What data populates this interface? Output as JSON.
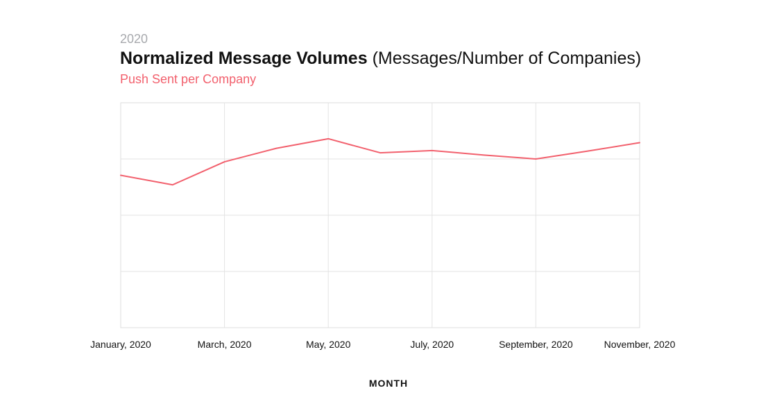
{
  "header": {
    "year": "2020",
    "title_main": "Normalized Message Volumes",
    "title_sub": "(Messages/Number of Companies)",
    "series_label": "Push Sent per Company"
  },
  "chart_data": {
    "type": "line",
    "title": "Normalized Message Volumes (Messages/Number of Companies)",
    "subtitle": "Push Sent per Company",
    "xlabel": "MONTH",
    "ylabel": "",
    "x": [
      "January, 2020",
      "February, 2020",
      "March, 2020",
      "April, 2020",
      "May, 2020",
      "June, 2020",
      "July, 2020",
      "August, 2020",
      "September, 2020",
      "October, 2020",
      "November, 2020"
    ],
    "x_tick_labels": [
      "January, 2020",
      "March, 2020",
      "May, 2020",
      "July, 2020",
      "September, 2020",
      "November, 2020"
    ],
    "series": [
      {
        "name": "Push Sent per Company",
        "color": "#f2606d",
        "values": [
          2.71,
          2.54,
          2.95,
          3.19,
          3.36,
          3.11,
          3.15,
          3.07,
          3.0,
          3.14,
          3.29
        ]
      }
    ],
    "ylim": [
      0,
      4
    ],
    "y_gridlines": [
      1,
      2,
      3
    ],
    "y_tick_labels_shown": false,
    "grid": true,
    "legend": "none",
    "colors": {
      "line": "#f2606d",
      "grid": "#e3e3e3",
      "frame": "#dedede"
    }
  }
}
